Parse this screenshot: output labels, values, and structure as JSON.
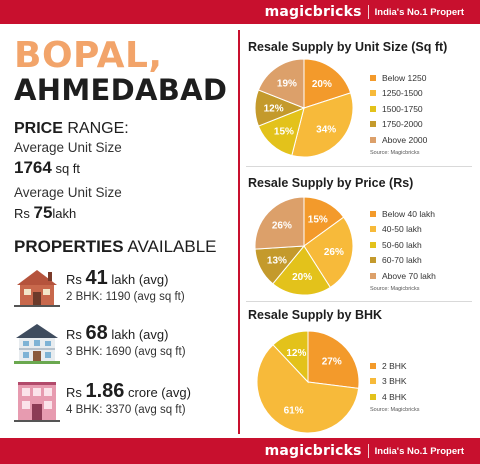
{
  "header": {
    "brand": "magicbricks",
    "tagline": "India's No.1 Propert"
  },
  "footer": {
    "brand": "magicbricks",
    "tagline": "India's No.1 Propert"
  },
  "location": {
    "line1": "BOPAL,",
    "line2": "AHMEDABAD"
  },
  "price_range": {
    "title_bold": "PRICE",
    "title_rest": " RANGE:",
    "label1": "Average Unit Size",
    "value1_num": "1764",
    "value1_unit": " sq ft",
    "label2": "Average Unit Size",
    "value2_prefix": "Rs ",
    "value2_num": "75",
    "value2_unit": "lakh"
  },
  "properties": {
    "title_bold": "PROPERTIES",
    "title_rest": " AVAILABLE",
    "items": [
      {
        "icon": "house-icon",
        "prefix": "Rs ",
        "value": "41",
        "suffix": " lakh (avg)",
        "detail": "2 BHK: 1190 (avg sq ft)"
      },
      {
        "icon": "bungalow-icon",
        "prefix": "Rs ",
        "value": "68",
        "suffix": " lakh (avg)",
        "detail": "3 BHK: 1690 (avg sq ft)"
      },
      {
        "icon": "building-icon",
        "prefix": "Rs ",
        "value": "1.86",
        "suffix": " crore (avg)",
        "detail": "4 BHK: 3370 (avg sq ft)"
      }
    ]
  },
  "colors": {
    "brand_red": "#c8102e",
    "accent_orange": "#f2a46a"
  },
  "chart_data": [
    {
      "type": "pie",
      "title": "Resale Supply by Unit Size (Sq ft)",
      "source": "Source: Magicbricks",
      "legend_position": "right",
      "slices": [
        {
          "label": "Below 1250",
          "value": 20,
          "display": "20%",
          "color": "#f39a2b"
        },
        {
          "label": "1250-1500",
          "value": 34,
          "display": "34%",
          "color": "#f7ba3a"
        },
        {
          "label": "1500-1750",
          "value": 15,
          "display": "15%",
          "color": "#e3c21b"
        },
        {
          "label": "1750-2000",
          "value": 12,
          "display": "12%",
          "color": "#c49a2c"
        },
        {
          "label": "Above 2000",
          "value": 19,
          "display": "19%",
          "color": "#dca06a"
        }
      ]
    },
    {
      "type": "pie",
      "title": "Resale Supply by Price (Rs)",
      "source": "Source: Magicbricks",
      "legend_position": "right",
      "slices": [
        {
          "label": "Below 40 lakh",
          "value": 15,
          "display": "15%",
          "color": "#f39a2b"
        },
        {
          "label": "40-50 lakh",
          "value": 26,
          "display": "26%",
          "color": "#f7ba3a"
        },
        {
          "label": "50-60 lakh",
          "value": 20,
          "display": "20%",
          "color": "#e3c21b"
        },
        {
          "label": "60-70 lakh",
          "value": 13,
          "display": "13%",
          "color": "#c49a2c"
        },
        {
          "label": "Above 70 lakh",
          "value": 26,
          "display": "26%",
          "color": "#dca06a"
        }
      ]
    },
    {
      "type": "pie",
      "title": "Resale Supply by BHK",
      "source": "Source: Magicbricks",
      "legend_position": "right",
      "slices": [
        {
          "label": "2 BHK",
          "value": 27,
          "display": "27%",
          "color": "#f39a2b"
        },
        {
          "label": "3 BHK",
          "value": 61,
          "display": "61%",
          "color": "#f7ba3a"
        },
        {
          "label": "4 BHK",
          "value": 12,
          "display": "12%",
          "color": "#e3c21b"
        }
      ]
    }
  ]
}
